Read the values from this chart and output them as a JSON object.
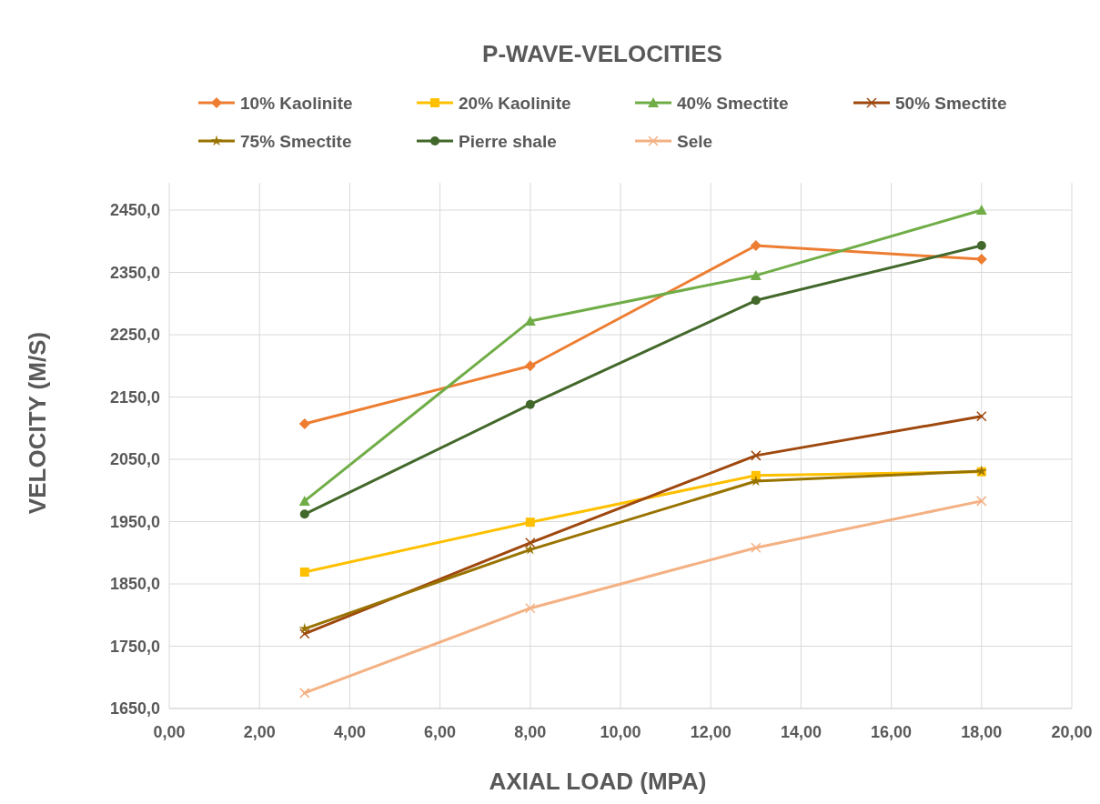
{
  "chart_data": {
    "type": "line",
    "title": "P-WAVE-VELOCITIES",
    "xlabel": "AXIAL LOAD (MPA)",
    "ylabel": "VELOCITY (M/S)",
    "x": [
      3,
      8,
      13,
      18
    ],
    "xlim": [
      0,
      20
    ],
    "xticks": [
      {
        "value": 0,
        "label": "0,00"
      },
      {
        "value": 2,
        "label": "2,00"
      },
      {
        "value": 4,
        "label": "4,00"
      },
      {
        "value": 6,
        "label": "6,00"
      },
      {
        "value": 8,
        "label": "8,00"
      },
      {
        "value": 10,
        "label": "10,00"
      },
      {
        "value": 12,
        "label": "12,00"
      },
      {
        "value": 14,
        "label": "14,00"
      },
      {
        "value": 16,
        "label": "16,00"
      },
      {
        "value": 18,
        "label": "18,00"
      },
      {
        "value": 20,
        "label": "20,00"
      }
    ],
    "ylim": [
      1650,
      2450
    ],
    "yticks": [
      {
        "value": 1650,
        "label": "1650,0"
      },
      {
        "value": 1750,
        "label": "1750,0"
      },
      {
        "value": 1850,
        "label": "1850,0"
      },
      {
        "value": 1950,
        "label": "1950,0"
      },
      {
        "value": 2050,
        "label": "2050,0"
      },
      {
        "value": 2150,
        "label": "2150,0"
      },
      {
        "value": 2250,
        "label": "2250,0"
      },
      {
        "value": 2350,
        "label": "2350,0"
      },
      {
        "value": 2450,
        "label": "2450,0"
      }
    ],
    "grid": true,
    "legend": "top",
    "series": [
      {
        "name": "10% Kaolinite",
        "color": "#ed7d31",
        "marker": "diamond",
        "values": [
          2107,
          2200,
          2393,
          2371
        ]
      },
      {
        "name": "20% Kaolinite",
        "color": "#ffc000",
        "marker": "square",
        "values": [
          1869,
          1949,
          2024,
          2030
        ]
      },
      {
        "name": "40% Smectite",
        "color": "#70ad47",
        "marker": "triangle",
        "values": [
          1983,
          2272,
          2345,
          2450
        ]
      },
      {
        "name": "50% Smectite",
        "color": "#9e480e",
        "marker": "cross",
        "values": [
          1770,
          1916,
          2056,
          2119
        ]
      },
      {
        "name": "75% Smectite",
        "color": "#997300",
        "marker": "star",
        "values": [
          1778,
          1905,
          2015,
          2031
        ]
      },
      {
        "name": "Pierre shale",
        "color": "#43682b",
        "marker": "circle",
        "values": [
          1962,
          2138,
          2305,
          2393
        ]
      },
      {
        "name": "Sele",
        "color": "#f4b183",
        "marker": "cross",
        "values": [
          1675,
          1811,
          1908,
          1983
        ]
      }
    ]
  }
}
